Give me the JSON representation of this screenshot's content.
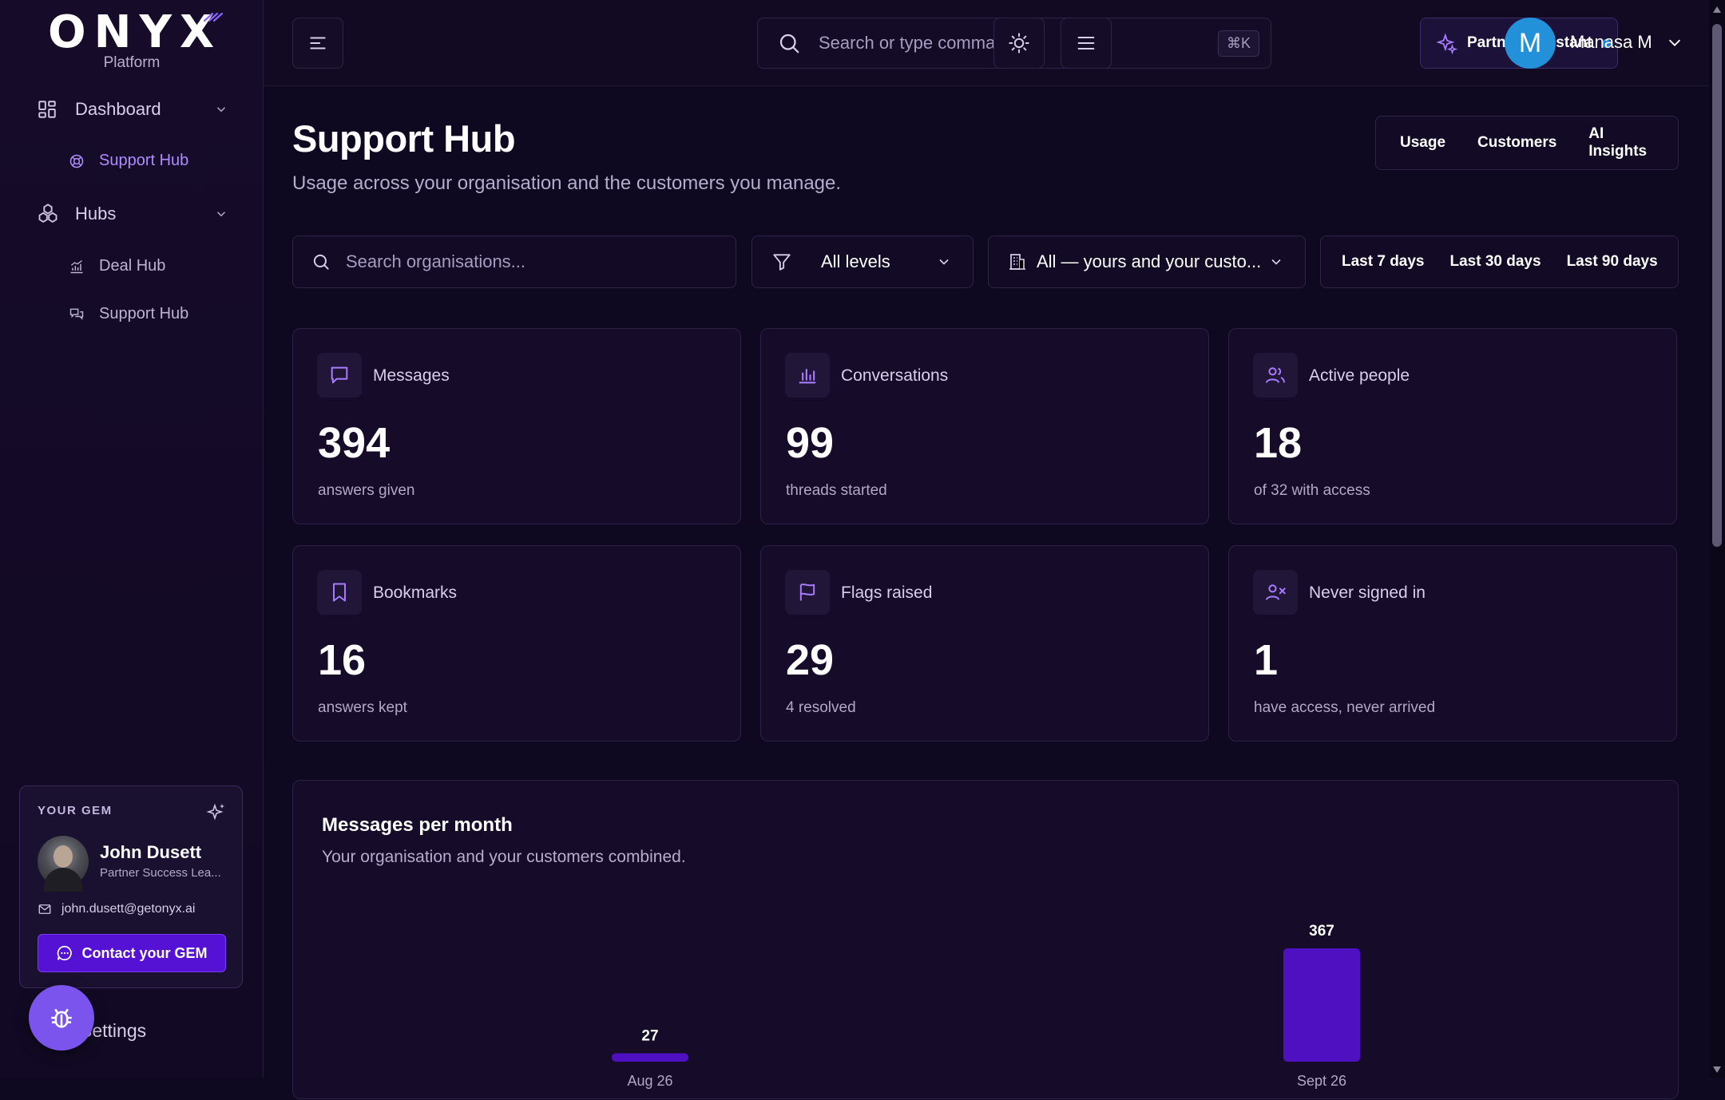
{
  "brand": {
    "logo": "ONYX",
    "subtitle": "Platform"
  },
  "sidebar": {
    "dashboard_label": "Dashboard",
    "dashboard_child": "Support Hub",
    "hubs_label": "Hubs",
    "hubs_children": [
      "Deal Hub",
      "Support Hub"
    ],
    "settings_label": "Settings"
  },
  "gem": {
    "tag": "YOUR GEM",
    "name": "John Dusett",
    "role": "Partner Success Lea...",
    "email": "john.dusett@getonyx.ai",
    "button": "Contact your GEM"
  },
  "topbar": {
    "search_placeholder": "Search or type command...",
    "shortcut": "⌘K",
    "assistant_label": "Partner Assistant",
    "assistant_status_color": "#1f86d6",
    "avatar_initial": "M",
    "user_name": "Manasa M"
  },
  "page": {
    "title": "Support Hub",
    "subtitle": "Usage across your organisation and the customers you manage.",
    "view_tabs": [
      "Usage",
      "Customers",
      "AI Insights"
    ]
  },
  "filters": {
    "search_placeholder": "Search organisations...",
    "level_value": "All levels",
    "org_value": "All — yours and your custo...",
    "ranges": [
      "Last 7 days",
      "Last 30 days",
      "Last 90 days"
    ]
  },
  "stats": [
    {
      "label": "Messages",
      "value": "394",
      "caption": "answers given",
      "icon": "message-icon"
    },
    {
      "label": "Conversations",
      "value": "99",
      "caption": "threads started",
      "icon": "bar-chart-icon"
    },
    {
      "label": "Active people",
      "value": "18",
      "caption": "of 32 with access",
      "icon": "users-icon"
    },
    {
      "label": "Bookmarks",
      "value": "16",
      "caption": "answers kept",
      "icon": "bookmark-icon"
    },
    {
      "label": "Flags raised",
      "value": "29",
      "caption": "4 resolved",
      "icon": "flag-icon"
    },
    {
      "label": "Never signed in",
      "value": "1",
      "caption": "have access, never arrived",
      "icon": "user-x-icon"
    }
  ],
  "chart": {
    "title": "Messages per month",
    "subtitle": "Your organisation and your customers combined."
  },
  "chart_data": {
    "type": "bar",
    "categories": [
      "Aug 26",
      "Sept 26"
    ],
    "values": [
      27,
      367
    ],
    "color": "#4f10c2",
    "title": "Messages per month"
  },
  "colors": {
    "accent": "#b08cff",
    "primary_button": "#5512d4",
    "background": "#0e0820"
  }
}
